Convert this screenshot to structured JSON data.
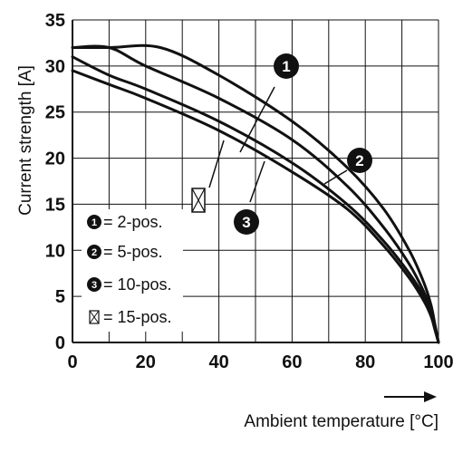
{
  "chart_data": {
    "type": "line",
    "xlabel": "Ambient temperature [°C]",
    "ylabel": "Current strength [A]",
    "xlim": [
      0,
      100
    ],
    "ylim": [
      0,
      35
    ],
    "x_ticks": [
      "0",
      "20",
      "40",
      "60",
      "80",
      "100"
    ],
    "y_ticks": [
      "0",
      "5",
      "10",
      "15",
      "20",
      "25",
      "30",
      "35"
    ],
    "grid": true,
    "legend_position": "lower-left",
    "series": [
      {
        "name": "= 2-pos.",
        "marker": "1",
        "x": [
          0,
          10,
          24,
          40,
          60,
          75,
          85,
          92,
          96,
          98,
          99,
          100
        ],
        "y": [
          32,
          32,
          32,
          29,
          24,
          19,
          14.5,
          10,
          6.5,
          4,
          2,
          0
        ]
      },
      {
        "name": "= 5-pos.",
        "marker": "2",
        "x": [
          0,
          10,
          20,
          40,
          60,
          75,
          85,
          92,
          96,
          98,
          99,
          100
        ],
        "y": [
          32,
          32,
          30,
          26.5,
          22,
          17,
          12.5,
          8.5,
          5.5,
          3.5,
          1.8,
          0
        ]
      },
      {
        "name": "= 10-pos.",
        "marker": "3",
        "x": [
          0,
          10,
          20,
          40,
          60,
          75,
          85,
          92,
          96,
          98,
          99,
          100
        ],
        "y": [
          31,
          29,
          27.5,
          24,
          19.5,
          15,
          11,
          7.5,
          5,
          3,
          1.5,
          0
        ]
      },
      {
        "name": "= 15-pos.",
        "marker": "box",
        "x": [
          0,
          10,
          20,
          40,
          60,
          75,
          85,
          92,
          96,
          98,
          99,
          100
        ],
        "y": [
          29.5,
          28,
          26.5,
          23,
          18.5,
          14.5,
          10.5,
          7,
          4.5,
          2.8,
          1.4,
          0
        ]
      }
    ],
    "callouts": [
      "1",
      "2",
      "3"
    ]
  }
}
